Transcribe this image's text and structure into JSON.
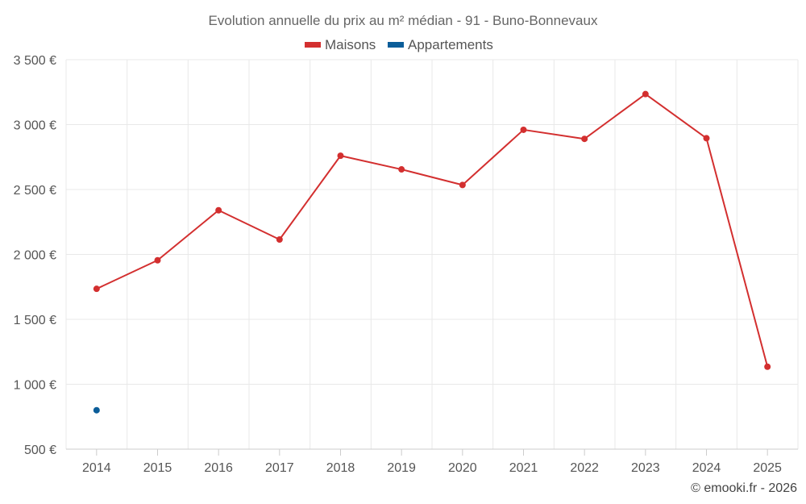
{
  "chart_data": {
    "type": "line",
    "title": "Evolution annuelle du prix au m² médian - 91 - Buno-Bonnevaux",
    "categories": [
      "2014",
      "2015",
      "2016",
      "2017",
      "2018",
      "2019",
      "2020",
      "2021",
      "2022",
      "2023",
      "2024",
      "2025"
    ],
    "series": [
      {
        "name": "Maisons",
        "color": "#d32f2f",
        "values": [
          1735,
          1955,
          2340,
          2115,
          2760,
          2655,
          2535,
          2960,
          2890,
          3235,
          2895,
          1135
        ]
      },
      {
        "name": "Appartements",
        "color": "#0b5d99",
        "values": [
          800,
          null,
          null,
          null,
          null,
          null,
          null,
          null,
          null,
          null,
          null,
          null
        ]
      }
    ],
    "ylim": [
      500,
      3500
    ],
    "yticks": [
      500,
      1000,
      1500,
      2000,
      2500,
      3000,
      3500
    ],
    "ytick_labels": [
      "500 €",
      "1 000 €",
      "1 500 €",
      "2 000 €",
      "2 500 €",
      "3 000 €",
      "3 500 €"
    ],
    "grid": true,
    "legend_position": "top-center"
  },
  "credit": "© emooki.fr - 2026"
}
